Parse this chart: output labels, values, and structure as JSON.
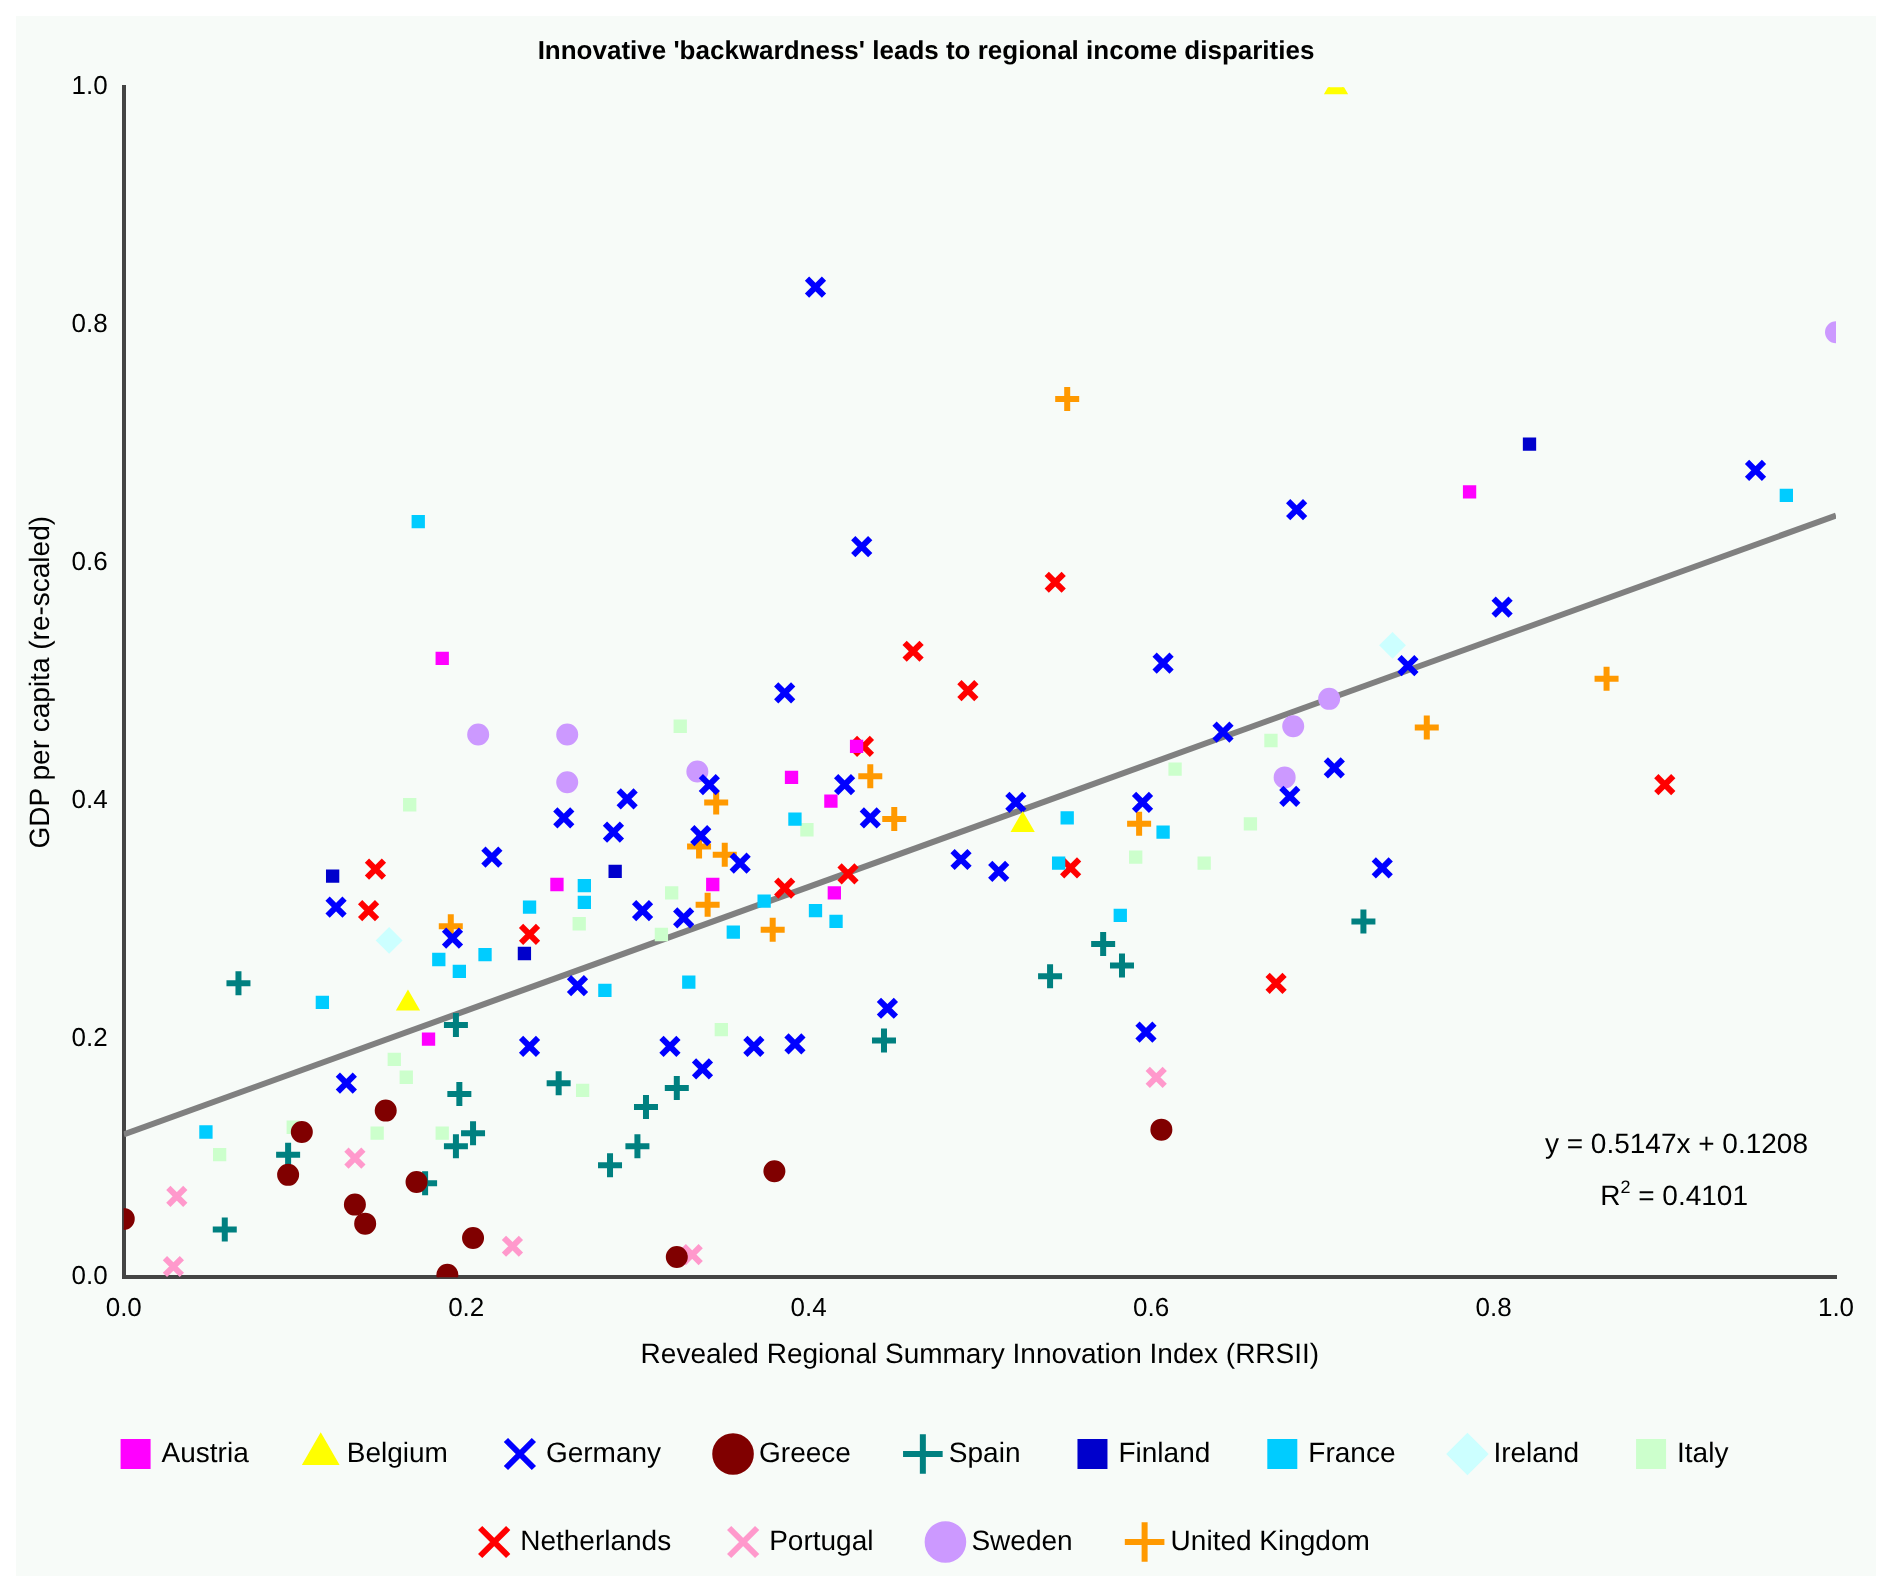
{
  "chart_data": {
    "type": "scatter",
    "title": "Innovative 'backwardness' leads to regional income disparities",
    "xlabel": "Revealed Regional Summary Innovation Index (RRSII)",
    "ylabel": "GDP per capita (re-scaled)",
    "xlim": [
      0,
      1
    ],
    "ylim": [
      0,
      1
    ],
    "xticks": [
      {
        "value": 0,
        "label": "0.0"
      },
      {
        "value": 0.2,
        "label": "0.2"
      },
      {
        "value": 0.4,
        "label": "0.4"
      },
      {
        "value": 0.6,
        "label": "0.6"
      },
      {
        "value": 0.8,
        "label": "0.8"
      },
      {
        "value": 1,
        "label": "1.0"
      }
    ],
    "yticks": [
      {
        "value": 0,
        "label": "0.0"
      },
      {
        "value": 0.2,
        "label": "0.2"
      },
      {
        "value": 0.4,
        "label": "0.4"
      },
      {
        "value": 0.6,
        "label": "0.6"
      },
      {
        "value": 0.8,
        "label": "0.8"
      },
      {
        "value": 1,
        "label": "1.0"
      }
    ],
    "grid": false,
    "legend": "bottom",
    "annotations": [
      "y = 0.5147x + 0.1208",
      "R$^{2}$ = 0.4101"
    ],
    "series": [
      {
        "name": "Austria",
        "color": "#ff00ff",
        "marker": "square",
        "x": [
          0.186,
          0.178,
          0.253,
          0.344,
          0.39,
          0.413,
          0.428,
          0.415,
          0.786
        ],
        "values": [
          0.52,
          0.2,
          0.33,
          0.33,
          0.42,
          0.4,
          0.446,
          0.323,
          0.66
        ]
      },
      {
        "name": "Belgium",
        "color": "#ffff00",
        "marker": "triangle",
        "x": [
          0.166,
          0.525,
          0.708
        ],
        "values": [
          0.23,
          0.38,
          1.0
        ]
      },
      {
        "name": "Germany",
        "color": "#0000ff",
        "marker": "x",
        "x": [
          0.215,
          0.124,
          0.13,
          0.192,
          0.386,
          0.257,
          0.294,
          0.286,
          0.342,
          0.337,
          0.36,
          0.421,
          0.436,
          0.303,
          0.327,
          0.265,
          0.237,
          0.319,
          0.338,
          0.368,
          0.392,
          0.446,
          0.607,
          0.642,
          0.521,
          0.595,
          0.489,
          0.511,
          0.597,
          0.681,
          0.75,
          0.707,
          0.735,
          0.685,
          0.805,
          0.953,
          0.404,
          0.431
        ],
        "values": [
          0.353,
          0.311,
          0.163,
          0.285,
          0.491,
          0.386,
          0.402,
          0.374,
          0.414,
          0.371,
          0.348,
          0.414,
          0.386,
          0.308,
          0.302,
          0.245,
          0.194,
          0.194,
          0.175,
          0.194,
          0.196,
          0.226,
          0.516,
          0.458,
          0.399,
          0.399,
          0.351,
          0.341,
          0.206,
          0.404,
          0.514,
          0.428,
          0.344,
          0.645,
          0.563,
          0.678,
          0.832,
          0.614
        ]
      },
      {
        "name": "Greece",
        "color": "#800000",
        "marker": "circle",
        "x": [
          0.0,
          0.096,
          0.104,
          0.153,
          0.135,
          0.141,
          0.171,
          0.204,
          0.189,
          0.38,
          0.323,
          0.606
        ],
        "values": [
          0.049,
          0.086,
          0.122,
          0.14,
          0.061,
          0.045,
          0.08,
          0.033,
          0.002,
          0.089,
          0.017,
          0.124
        ]
      },
      {
        "name": "Spain",
        "color": "#008080",
        "marker": "cross",
        "x": [
          0.067,
          0.059,
          0.096,
          0.176,
          0.194,
          0.196,
          0.204,
          0.194,
          0.444,
          0.254,
          0.323,
          0.305,
          0.3,
          0.284,
          0.541,
          0.572,
          0.583,
          0.724
        ],
        "values": [
          0.247,
          0.04,
          0.103,
          0.079,
          0.212,
          0.154,
          0.121,
          0.11,
          0.199,
          0.163,
          0.159,
          0.143,
          0.11,
          0.094,
          0.253,
          0.28,
          0.262,
          0.299
        ]
      },
      {
        "name": "Finland",
        "color": "#0000cc",
        "marker": "square",
        "x": [
          0.122,
          0.287,
          0.234,
          0.821
        ],
        "values": [
          0.337,
          0.341,
          0.272,
          0.7
        ]
      },
      {
        "name": "France",
        "color": "#00ccff",
        "marker": "square",
        "x": [
          0.116,
          0.048,
          0.184,
          0.196,
          0.211,
          0.172,
          0.237,
          0.269,
          0.269,
          0.281,
          0.33,
          0.356,
          0.374,
          0.404,
          0.416,
          0.392,
          0.551,
          0.607,
          0.582,
          0.546,
          0.971
        ],
        "values": [
          0.231,
          0.122,
          0.267,
          0.257,
          0.271,
          0.635,
          0.311,
          0.329,
          0.315,
          0.241,
          0.248,
          0.29,
          0.316,
          0.308,
          0.299,
          0.385,
          0.386,
          0.374,
          0.304,
          0.348,
          0.657
        ]
      },
      {
        "name": "Ireland",
        "color": "#ccffff",
        "marker": "diamond",
        "x": [
          0.155,
          0.741
        ],
        "values": [
          0.283,
          0.531
        ]
      },
      {
        "name": "Italy",
        "color": "#ccffcc",
        "marker": "square",
        "x": [
          0.167,
          0.158,
          0.165,
          0.099,
          0.056,
          0.148,
          0.186,
          0.325,
          0.399,
          0.266,
          0.32,
          0.314,
          0.349,
          0.268,
          0.614,
          0.591,
          0.631,
          0.658,
          0.67
        ],
        "values": [
          0.397,
          0.183,
          0.168,
          0.126,
          0.103,
          0.121,
          0.121,
          0.463,
          0.376,
          0.297,
          0.323,
          0.288,
          0.208,
          0.157,
          0.427,
          0.353,
          0.348,
          0.381,
          0.451
        ]
      },
      {
        "name": "Netherlands",
        "color": "#ff0000",
        "marker": "x",
        "x": [
          0.147,
          0.143,
          0.237,
          0.432,
          0.386,
          0.423,
          0.461,
          0.493,
          0.553,
          0.673,
          0.544,
          0.9
        ],
        "values": [
          0.343,
          0.308,
          0.288,
          0.446,
          0.327,
          0.339,
          0.526,
          0.493,
          0.344,
          0.247,
          0.584,
          0.414
        ]
      },
      {
        "name": "Portugal",
        "color": "#ff99cc",
        "marker": "x",
        "x": [
          0.031,
          0.029,
          0.135,
          0.227,
          0.332,
          0.603
        ],
        "values": [
          0.068,
          0.009,
          0.1,
          0.026,
          0.019,
          0.168
        ]
      },
      {
        "name": "Sweden",
        "color": "#cc99ff",
        "marker": "circle",
        "x": [
          0.207,
          0.259,
          0.259,
          0.335,
          0.704,
          0.683,
          0.678,
          1.0
        ],
        "values": [
          0.456,
          0.456,
          0.416,
          0.425,
          0.486,
          0.463,
          0.42,
          0.794
        ]
      },
      {
        "name": "United Kingdom",
        "color": "#ff9900",
        "marker": "cross",
        "x": [
          0.191,
          0.436,
          0.346,
          0.336,
          0.351,
          0.341,
          0.379,
          0.45,
          0.593,
          0.551,
          0.866,
          0.761
        ],
        "values": [
          0.295,
          0.421,
          0.399,
          0.362,
          0.355,
          0.313,
          0.292,
          0.385,
          0.381,
          0.738,
          0.503,
          0.462
        ]
      },
      {
        "type": "line",
        "color": "#808080",
        "marker": "none",
        "x": [
          0,
          1
        ],
        "values": [
          0.12,
          0.64
        ]
      }
    ]
  }
}
